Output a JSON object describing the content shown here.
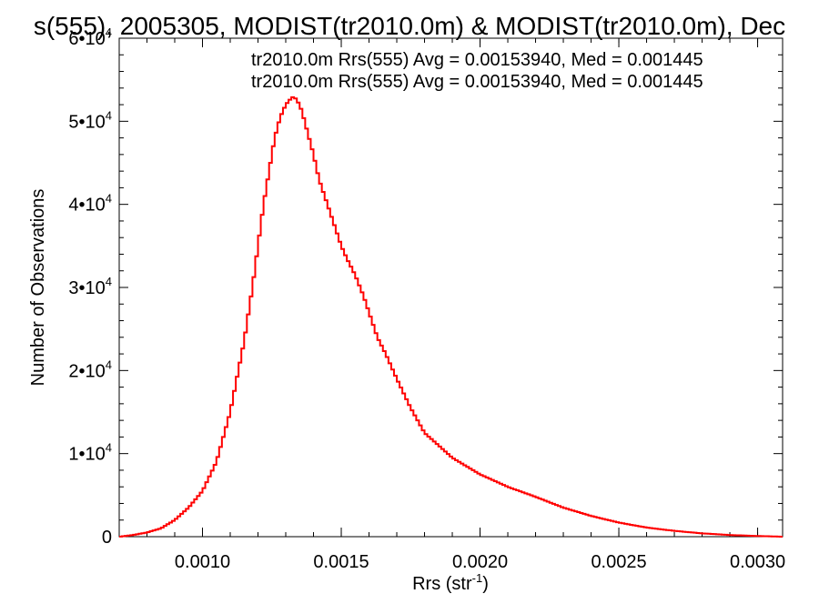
{
  "chart_data": {
    "type": "line",
    "title": "s(555), 2005305, MODIST(tr2010.0m) & MODIST(tr2010.0m), Dec",
    "xlabel": "Rrs (str",
    "xlabel_sup": "-1",
    "xlabel_close": ")",
    "ylabel": "Number of Observations",
    "xlim": [
      0.0007,
      0.00309
    ],
    "ylim": [
      0,
      60000
    ],
    "xticks": [
      {
        "value": 0.001,
        "label": "0.0010"
      },
      {
        "value": 0.0015,
        "label": "0.0015"
      },
      {
        "value": 0.002,
        "label": "0.0020"
      },
      {
        "value": 0.0025,
        "label": "0.0025"
      },
      {
        "value": 0.003,
        "label": "0.0030"
      }
    ],
    "yticks": [
      {
        "value": 0,
        "mant": "0",
        "exp": ""
      },
      {
        "value": 10000,
        "mant": "1•10",
        "exp": "4"
      },
      {
        "value": 20000,
        "mant": "2•10",
        "exp": "4"
      },
      {
        "value": 30000,
        "mant": "3•10",
        "exp": "4"
      },
      {
        "value": 40000,
        "mant": "4•10",
        "exp": "4"
      },
      {
        "value": 50000,
        "mant": "5•10",
        "exp": "4"
      },
      {
        "value": 60000,
        "mant": "6•10",
        "exp": "4"
      }
    ],
    "annotations": [
      {
        "text": "tr2010.0m Rrs(555) Avg = 0.00153940, Med = 0.001445",
        "color": "#000000"
      },
      {
        "text": "tr2010.0m Rrs(555) Avg = 0.00153940, Med = 0.001445",
        "color": "#ff0000"
      }
    ],
    "grid": false,
    "series": [
      {
        "color": "#ff0000",
        "x": [
          0.0007,
          0.00075,
          0.0008,
          0.00085,
          0.0009,
          0.00095,
          0.001,
          0.00105,
          0.0011,
          0.00115,
          0.00118,
          0.0012,
          0.00122,
          0.00124,
          0.00126,
          0.00128,
          0.0013,
          0.00132,
          0.00133,
          0.00134,
          0.00135,
          0.00136,
          0.00138,
          0.0014,
          0.00142,
          0.00145,
          0.00148,
          0.0015,
          0.00152,
          0.00155,
          0.00158,
          0.0016,
          0.00163,
          0.00166,
          0.0017,
          0.00175,
          0.0018,
          0.0019,
          0.002,
          0.0021,
          0.0022,
          0.0023,
          0.0024,
          0.0025,
          0.0026,
          0.0027,
          0.0028,
          0.0029,
          0.003,
          0.00309
        ],
        "y": [
          0,
          200,
          500,
          1000,
          2000,
          3500,
          5500,
          9000,
          15000,
          23500,
          30000,
          35000,
          40000,
          44000,
          48000,
          50500,
          52000,
          52800,
          53000,
          52500,
          52000,
          51000,
          48500,
          46000,
          43000,
          40000,
          37000,
          35000,
          33500,
          31500,
          29000,
          27000,
          24000,
          22000,
          19000,
          15500,
          12500,
          9500,
          7500,
          6000,
          4800,
          3500,
          2500,
          1700,
          1100,
          700,
          400,
          200,
          80,
          0
        ]
      }
    ]
  }
}
